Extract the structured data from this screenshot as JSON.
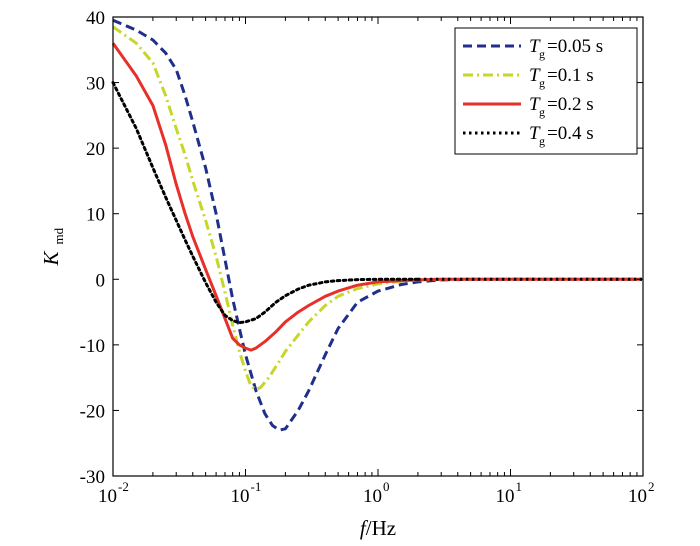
{
  "chart_data": {
    "type": "line",
    "title": "",
    "x_scale": "log",
    "xlim": [
      0.01,
      100
    ],
    "ylim": [
      -30,
      40
    ],
    "x_ticks": [
      {
        "value": 0.01,
        "base": "10",
        "exp": "-2"
      },
      {
        "value": 0.1,
        "base": "10",
        "exp": "-1"
      },
      {
        "value": 1,
        "base": "10",
        "exp": "0"
      },
      {
        "value": 10,
        "base": "10",
        "exp": "1"
      },
      {
        "value": 100,
        "base": "10",
        "exp": "2"
      }
    ],
    "y_ticks": [
      40,
      30,
      20,
      10,
      0,
      -10,
      -20,
      -30
    ],
    "y_tick_labels": [
      "40",
      "30",
      "20",
      "10",
      "0",
      "-10",
      "-20",
      "-30"
    ],
    "xlabel": {
      "italic": "f",
      "rest": "/Hz"
    },
    "ylabel": {
      "main": "K",
      "sub": "md"
    },
    "legend_position": "top-right",
    "grid": false,
    "series": [
      {
        "name": "T_g=0.05 s",
        "label_T": "T",
        "label_sub": "g",
        "label_rest": "=0.05 s",
        "color": "#1f2f8c",
        "style": "dashed",
        "x": [
          0.01,
          0.015,
          0.02,
          0.025,
          0.03,
          0.035,
          0.04,
          0.05,
          0.06,
          0.07,
          0.08,
          0.09,
          0.1,
          0.12,
          0.14,
          0.16,
          0.18,
          0.2,
          0.25,
          0.3,
          0.4,
          0.5,
          0.7,
          1,
          1.5,
          2,
          3,
          5
        ],
        "y": [
          39.5,
          38,
          36.5,
          34.5,
          32,
          28,
          24,
          17,
          10,
          3,
          -3,
          -7.5,
          -11.5,
          -17,
          -20.5,
          -22.3,
          -23,
          -22.8,
          -20,
          -17,
          -11.5,
          -7.5,
          -3.5,
          -1.8,
          -0.8,
          -0.4,
          -0.1,
          0
        ]
      },
      {
        "name": "T_g=0.1 s",
        "label_T": "T",
        "label_sub": "g",
        "label_rest": "=0.1 s",
        "color": "#c6d62a",
        "style": "dashdot",
        "x": [
          0.01,
          0.015,
          0.02,
          0.025,
          0.03,
          0.035,
          0.04,
          0.05,
          0.06,
          0.07,
          0.08,
          0.09,
          0.1,
          0.11,
          0.12,
          0.13,
          0.15,
          0.18,
          0.2,
          0.25,
          0.3,
          0.4,
          0.5,
          0.7,
          1,
          1.5,
          2,
          3
        ],
        "y": [
          38.5,
          36,
          33,
          28,
          23,
          19,
          15,
          9,
          3.5,
          -2,
          -7,
          -11,
          -14,
          -16.3,
          -16.8,
          -16.5,
          -15,
          -12.5,
          -11,
          -8.5,
          -6.5,
          -4,
          -2.6,
          -1.4,
          -0.7,
          -0.3,
          -0.1,
          0
        ]
      },
      {
        "name": "T_g=0.2 s",
        "label_T": "T",
        "label_sub": "g",
        "label_rest": "=0.2 s",
        "color": "#e8302a",
        "style": "solid",
        "x": [
          0.01,
          0.015,
          0.02,
          0.025,
          0.03,
          0.035,
          0.04,
          0.05,
          0.06,
          0.07,
          0.08,
          0.09,
          0.1,
          0.11,
          0.12,
          0.14,
          0.17,
          0.2,
          0.25,
          0.3,
          0.4,
          0.5,
          0.7,
          1,
          1.5,
          2,
          3
        ],
        "y": [
          36,
          31,
          26.5,
          20.5,
          14.5,
          10,
          6.5,
          1.5,
          -2.5,
          -6,
          -9,
          -10,
          -10.5,
          -10.8,
          -10.5,
          -9.5,
          -8,
          -6.5,
          -5,
          -4,
          -2.6,
          -1.8,
          -0.9,
          -0.4,
          -0.2,
          -0.1,
          0
        ]
      },
      {
        "name": "T_g=0.4 s",
        "label_T": "T",
        "label_sub": "g",
        "label_rest": "=0.4 s",
        "color": "#000000",
        "style": "dotted",
        "x": [
          0.01,
          0.015,
          0.02,
          0.025,
          0.03,
          0.035,
          0.04,
          0.05,
          0.06,
          0.07,
          0.08,
          0.09,
          0.1,
          0.12,
          0.14,
          0.17,
          0.2,
          0.25,
          0.3,
          0.4,
          0.5,
          0.7,
          1,
          1.5,
          2
        ],
        "y": [
          30,
          23,
          17,
          12.5,
          9,
          6,
          3.5,
          -0.5,
          -3.5,
          -5.5,
          -6.3,
          -6.6,
          -6.5,
          -6,
          -5,
          -3.5,
          -2.5,
          -1.5,
          -0.9,
          -0.4,
          -0.2,
          -0.05,
          0,
          0,
          0
        ]
      }
    ]
  }
}
